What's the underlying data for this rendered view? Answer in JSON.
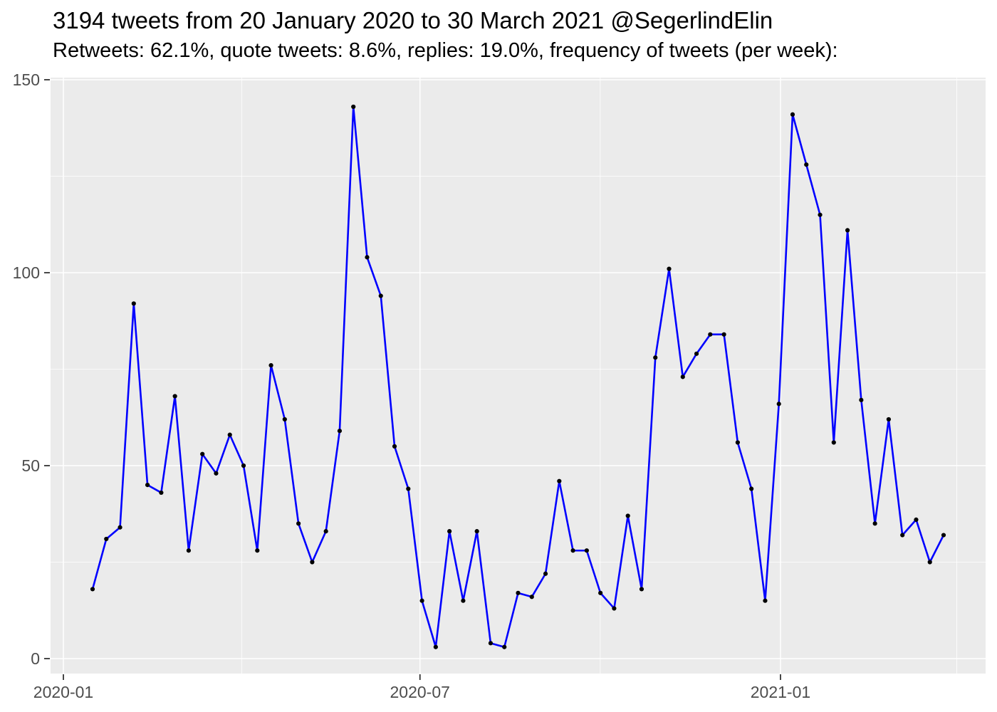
{
  "chart_data": {
    "type": "line",
    "title": "3194 tweets from 20 January 2020 to 30 March 2021 @SegerlindElin",
    "subtitle": "Retweets: 62.1%, quote tweets: 8.6%, replies: 19.0%, frequency of tweets (per week):",
    "series_name": "tweets per week",
    "x_unit": "week_starting",
    "weeks": [
      "2020-01-20",
      "2020-01-27",
      "2020-02-03",
      "2020-02-10",
      "2020-02-17",
      "2020-02-24",
      "2020-03-02",
      "2020-03-09",
      "2020-03-16",
      "2020-03-23",
      "2020-03-30",
      "2020-04-06",
      "2020-04-13",
      "2020-04-20",
      "2020-04-27",
      "2020-05-04",
      "2020-05-11",
      "2020-05-18",
      "2020-05-25",
      "2020-06-01",
      "2020-06-08",
      "2020-06-15",
      "2020-06-22",
      "2020-06-29",
      "2020-07-06",
      "2020-07-13",
      "2020-07-20",
      "2020-07-27",
      "2020-08-03",
      "2020-08-10",
      "2020-08-17",
      "2020-08-24",
      "2020-08-31",
      "2020-09-07",
      "2020-09-14",
      "2020-09-21",
      "2020-09-28",
      "2020-10-05",
      "2020-10-12",
      "2020-10-19",
      "2020-10-26",
      "2020-11-02",
      "2020-11-09",
      "2020-11-16",
      "2020-11-23",
      "2020-11-30",
      "2020-12-07",
      "2020-12-14",
      "2020-12-21",
      "2020-12-28",
      "2021-01-04",
      "2021-01-11",
      "2021-01-18",
      "2021-01-25",
      "2021-02-01",
      "2021-02-08",
      "2021-02-15",
      "2021-02-22",
      "2021-03-01",
      "2021-03-08",
      "2021-03-15",
      "2021-03-22",
      "2021-03-29"
    ],
    "values": [
      18,
      31,
      34,
      92,
      45,
      43,
      68,
      28,
      53,
      48,
      58,
      50,
      28,
      76,
      62,
      35,
      25,
      33,
      59,
      143,
      104,
      94,
      55,
      44,
      15,
      3,
      33,
      15,
      33,
      4,
      3,
      17,
      16,
      22,
      46,
      28,
      28,
      17,
      13,
      37,
      18,
      78,
      101,
      73,
      79,
      84,
      84,
      56,
      44,
      15,
      66,
      141,
      128,
      115,
      56,
      111,
      67,
      35,
      62,
      32,
      36,
      25,
      32
    ],
    "total_tweets": 3194,
    "x_axis": {
      "tick_labels": [
        "2020-01",
        "2020-07",
        "2021-01"
      ],
      "tick_dates": [
        "2020-01-01",
        "2020-07-01",
        "2021-01-01"
      ],
      "minor_gridline_dates": [
        "2020-04-01",
        "2020-10-01",
        "2021-04-01"
      ]
    },
    "y_axis": {
      "tick_labels": [
        "0",
        "50",
        "100",
        "150"
      ],
      "tick_values": [
        0,
        50,
        100,
        150
      ],
      "minor_gridline_values": [
        25,
        75,
        125
      ],
      "range": [
        0,
        150
      ]
    },
    "legend": "none",
    "grid": "on",
    "colors": {
      "line": "#0000FF",
      "point": "#000000",
      "panel_background": "#EBEBEB",
      "gridline": "#FFFFFF",
      "axis_text": "#4D4D4D",
      "tick_mark": "#333333",
      "title_text": "#000000"
    }
  }
}
